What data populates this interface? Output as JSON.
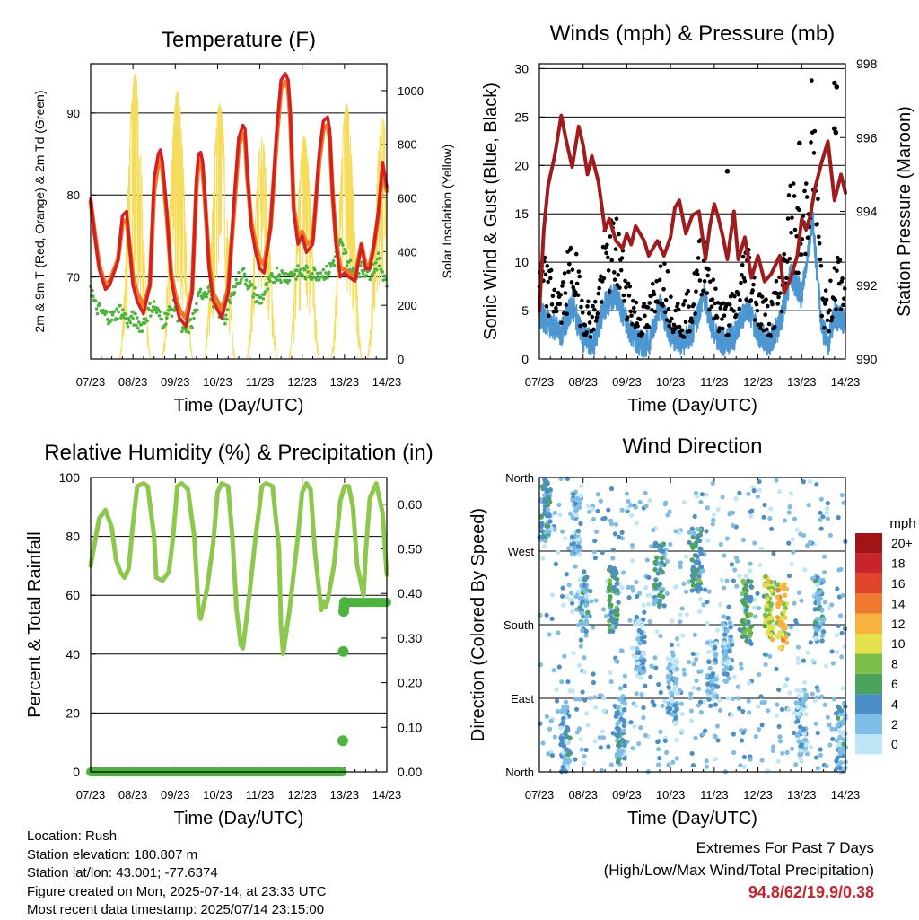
{
  "footer": {
    "location": "Location: Rush",
    "elevation": "Station elevation: 180.807 m",
    "latlon": "Station lat/lon: 43.001; -77.6374",
    "created": "Figure created on Mon, 2025-07-14, at 23:33 UTC",
    "latest": "Most recent data timestamp: 2025/07/14 23:15:00"
  },
  "extremes": {
    "title": "Extremes For Past 7 Days",
    "subtitle": "(High/Low/Max Wind/Total Precipitation)",
    "values": "94.8/62/19.9/0.38"
  },
  "chart_data": [
    {
      "type": "line",
      "title": "Temperature (F)",
      "xlabel": "Time (Day/UTC)",
      "ylabel": "2m & 9m T (Red, Orange) & 2m Td (Green)",
      "y2label": "Solar Insolation (Yellow)",
      "x_ticks": [
        "07/23",
        "08/23",
        "09/23",
        "10/23",
        "11/23",
        "12/23",
        "13/23",
        "14/23"
      ],
      "xlim": [
        0,
        7
      ],
      "ylim": [
        60,
        96
      ],
      "y_ticks": [
        70,
        80,
        90
      ],
      "y2lim": [
        0,
        1100
      ],
      "y2_ticks": [
        0,
        200,
        400,
        600,
        800,
        1000
      ],
      "grid": "horizontal",
      "colors": {
        "t2m": "#d42020",
        "t9m": "#f07a24",
        "td": "#4ab43c",
        "solar": "#f5dc5a"
      },
      "series": [
        {
          "name": "2m T",
          "x": [
            0,
            0.1,
            0.2,
            0.35,
            0.45,
            0.55,
            0.65,
            0.75,
            0.85,
            0.95,
            1.0,
            1.1,
            1.25,
            1.4,
            1.5,
            1.6,
            1.65,
            1.7,
            1.8,
            1.9,
            2.0,
            2.1,
            2.25,
            2.4,
            2.5,
            2.55,
            2.6,
            2.65,
            2.7,
            2.8,
            2.9,
            3.0,
            3.1,
            3.25,
            3.4,
            3.5,
            3.6,
            3.65,
            3.7,
            3.8,
            3.9,
            4.0,
            4.1,
            4.25,
            4.4,
            4.5,
            4.6,
            4.67,
            4.72,
            4.8,
            4.9,
            5.0,
            5.1,
            5.25,
            5.4,
            5.5,
            5.6,
            5.65,
            5.72,
            5.8,
            5.9,
            6.0,
            6.1,
            6.25,
            6.4,
            6.5,
            6.6,
            6.7,
            6.8,
            6.9,
            7.0
          ],
          "values": [
            79.5,
            75,
            71,
            68.5,
            69,
            70.5,
            72,
            77.5,
            78,
            72,
            69,
            67,
            65.5,
            69,
            82,
            85,
            85.5,
            84,
            78,
            70,
            67,
            65,
            64,
            68,
            82,
            85,
            85.2,
            84,
            80,
            71,
            67,
            66,
            65,
            68,
            80,
            87,
            88.5,
            88,
            83,
            76,
            73,
            71,
            70.5,
            76,
            88,
            94,
            94.8,
            94,
            90,
            78,
            74,
            75,
            73,
            74,
            85,
            89,
            89.5,
            88,
            80,
            74,
            70,
            70.5,
            70,
            69.5,
            74,
            71,
            71,
            74,
            78,
            84,
            81
          ]
        },
        {
          "name": "9m T",
          "x": [
            0,
            0.1,
            0.2,
            0.35,
            0.45,
            0.55,
            0.65,
            0.75,
            0.85,
            0.95,
            1.0,
            1.1,
            1.25,
            1.4,
            1.5,
            1.6,
            1.65,
            1.7,
            1.8,
            1.9,
            2.0,
            2.1,
            2.25,
            2.4,
            2.5,
            2.55,
            2.6,
            2.65,
            2.7,
            2.8,
            2.9,
            3.0,
            3.1,
            3.25,
            3.4,
            3.5,
            3.6,
            3.65,
            3.7,
            3.8,
            3.9,
            4.0,
            4.1,
            4.25,
            4.4,
            4.5,
            4.6,
            4.67,
            4.72,
            4.8,
            4.9,
            5.0,
            5.1,
            5.25,
            5.4,
            5.5,
            5.6,
            5.65,
            5.72,
            5.8,
            5.9,
            6.0,
            6.1,
            6.25,
            6.4,
            6.5,
            6.6,
            6.7,
            6.8,
            6.9,
            7.0
          ],
          "values": [
            79.2,
            75.2,
            71.5,
            69,
            69.5,
            70.8,
            72.2,
            76.5,
            77,
            72.5,
            70,
            68,
            66.5,
            69,
            80.5,
            84,
            84.5,
            83,
            77.5,
            70.5,
            67.8,
            66,
            65,
            68.5,
            81,
            84,
            84.2,
            83,
            79.5,
            71.5,
            68,
            67,
            66,
            68.5,
            79,
            86,
            87.5,
            87,
            82.5,
            76.5,
            74,
            72,
            71.5,
            76,
            87,
            93,
            93.8,
            93,
            89.5,
            78.5,
            75,
            75.5,
            74,
            74.5,
            84,
            88,
            88.5,
            87,
            80,
            74.5,
            71,
            71,
            70.5,
            70,
            74,
            71.5,
            71.5,
            74,
            77.5,
            83,
            80.5
          ]
        },
        {
          "name": "2m Td",
          "x": [
            0,
            0.1,
            0.3,
            0.5,
            0.7,
            0.9,
            1.0,
            1.2,
            1.4,
            1.5,
            1.7,
            1.9,
            2.0,
            2.2,
            2.4,
            2.6,
            2.8,
            3.0,
            3.2,
            3.4,
            3.6,
            3.8,
            4.0,
            4.2,
            4.4,
            4.6,
            4.8,
            5.0,
            5.2,
            5.4,
            5.6,
            5.8,
            5.9,
            6.0,
            6.2,
            6.4,
            6.6,
            6.8,
            7.0
          ],
          "values": [
            69,
            66.5,
            65.5,
            65,
            66,
            64.5,
            65,
            64,
            66,
            66.5,
            64.5,
            66,
            66.5,
            63,
            64.5,
            68,
            68.5,
            66,
            65,
            69,
            70.5,
            68.5,
            67,
            69,
            70.5,
            70,
            70.5,
            70.5,
            70.5,
            70.5,
            70.5,
            72.5,
            74,
            73,
            70.5,
            71,
            70.5,
            72,
            69.5
          ]
        },
        {
          "name": "Solar Insolation",
          "axis": "y2",
          "day_peaks": [
            {
              "x": 1.05,
              "value": 1060
            },
            {
              "x": 2.05,
              "value": 1000
            },
            {
              "x": 3.05,
              "value": 950
            },
            {
              "x": 4.05,
              "value": 820
            },
            {
              "x": 5.05,
              "value": 830
            },
            {
              "x": 6.05,
              "value": 950
            },
            {
              "x": 6.9,
              "value": 900
            }
          ]
        }
      ]
    },
    {
      "type": "line",
      "title": "Winds (mph) & Pressure (mb)",
      "xlabel": "Time (Day/UTC)",
      "ylabel": "Sonic Wind & Gust (Blue, Black)",
      "y2label": "Station Pressure (Maroon)",
      "x_ticks": [
        "07/23",
        "08/23",
        "09/23",
        "10/23",
        "11/23",
        "12/23",
        "13/23",
        "14/23"
      ],
      "xlim": [
        0,
        7
      ],
      "ylim": [
        0,
        30.5
      ],
      "y_ticks": [
        0,
        5,
        10,
        15,
        20,
        25,
        30
      ],
      "y2lim": [
        990,
        998
      ],
      "y2_ticks": [
        990,
        992,
        994,
        996,
        998
      ],
      "grid": "horizontal",
      "colors": {
        "wind": "#4c96d2",
        "gust": "#000000",
        "pressure": "#a01c1c"
      },
      "series": [
        {
          "name": "Station Pressure",
          "axis": "y2",
          "x": [
            0,
            0.1,
            0.2,
            0.35,
            0.5,
            0.6,
            0.75,
            0.9,
            1.0,
            1.1,
            1.2,
            1.35,
            1.5,
            1.6,
            1.75,
            1.9,
            2.0,
            2.1,
            2.2,
            2.4,
            2.5,
            2.7,
            2.85,
            3.0,
            3.1,
            3.2,
            3.35,
            3.5,
            3.65,
            3.8,
            3.9,
            4.0,
            4.1,
            4.2,
            4.3,
            4.45,
            4.55,
            4.7,
            4.85,
            5.0,
            5.15,
            5.3,
            5.5,
            5.6,
            5.75,
            5.9,
            6.0,
            6.1,
            6.2,
            6.3,
            6.45,
            6.6,
            6.75,
            6.9,
            7.0
          ],
          "values": [
            991.3,
            993.5,
            994.7,
            995.5,
            996.6,
            996.0,
            995.2,
            996.3,
            995.8,
            995.0,
            995.5,
            994.8,
            993.5,
            993.8,
            993.2,
            993.0,
            993.4,
            993.1,
            993.6,
            993.2,
            992.8,
            993.2,
            992.8,
            993.3,
            994.1,
            994.3,
            993.4,
            993.9,
            994.0,
            992.7,
            993.6,
            994.2,
            993.8,
            993.3,
            992.7,
            994.0,
            992.7,
            993.3,
            992.2,
            992.8,
            992.1,
            992.3,
            992.8,
            991.8,
            992.2,
            992.8,
            993.8,
            993.5,
            993.9,
            994.6,
            995.3,
            995.9,
            994.3,
            995.0,
            994.5
          ]
        },
        {
          "name": "Sonic Wind",
          "x": [
            0,
            0.25,
            0.5,
            0.75,
            1.0,
            1.25,
            1.5,
            1.75,
            2.0,
            2.25,
            2.5,
            2.75,
            3.0,
            3.25,
            3.5,
            3.75,
            4.0,
            4.25,
            4.5,
            4.75,
            5.0,
            5.25,
            5.5,
            5.75,
            6.0,
            6.25,
            6.45,
            6.6,
            6.75,
            7.0
          ],
          "values": [
            4,
            3,
            2,
            5,
            1.5,
            1,
            5,
            6,
            3,
            1,
            1,
            5,
            2,
            1,
            2,
            6,
            2,
            1,
            2,
            5,
            2,
            1,
            3,
            8,
            6,
            14,
            3,
            1,
            4,
            3
          ]
        },
        {
          "name": "Gust",
          "notable": [
            {
              "x": 5.95,
              "value": 22.3
            },
            {
              "x": 6.75,
              "value": 28.5
            },
            {
              "x": 6.8,
              "value": 28.1
            },
            {
              "x": 6.75,
              "value": 23.8
            },
            {
              "x": 6.78,
              "value": 23.4
            },
            {
              "x": 4.3,
              "value": 19.4
            }
          ]
        }
      ]
    },
    {
      "type": "line",
      "title": "Relative Humidity (%) & Precipitation (in)",
      "xlabel": "Time (Day/UTC)",
      "ylabel": "Percent & Total Rainfall",
      "x_ticks": [
        "07/23",
        "08/23",
        "09/23",
        "10/23",
        "11/23",
        "12/23",
        "13/23",
        "14/23"
      ],
      "xlim": [
        0,
        7
      ],
      "ylim": [
        0,
        100
      ],
      "y_ticks": [
        0,
        20,
        40,
        60,
        80,
        100
      ],
      "y2lim": [
        0,
        0.66
      ],
      "y2_ticks": [
        "0.00",
        "0.10",
        "0.20",
        "0.30",
        "0.40",
        "0.50",
        "0.60"
      ],
      "grid": "horizontal",
      "colors": {
        "rh": "#8cc84c",
        "precip": "#4ab43c"
      },
      "series": [
        {
          "name": "Relative Humidity",
          "x": [
            0,
            0.2,
            0.35,
            0.5,
            0.6,
            0.7,
            0.8,
            0.9,
            1.0,
            1.1,
            1.25,
            1.35,
            1.5,
            1.55,
            1.7,
            1.85,
            1.95,
            2.05,
            2.15,
            2.3,
            2.45,
            2.55,
            2.6,
            2.75,
            2.9,
            3.0,
            3.1,
            3.25,
            3.35,
            3.45,
            3.55,
            3.6,
            3.75,
            3.9,
            4.05,
            4.15,
            4.3,
            4.45,
            4.5,
            4.55,
            4.7,
            4.9,
            5.0,
            5.1,
            5.2,
            5.3,
            5.45,
            5.5,
            5.55,
            5.6,
            5.75,
            5.9,
            6.0,
            6.1,
            6.2,
            6.3,
            6.45,
            6.5,
            6.6,
            6.75,
            6.9,
            7.0
          ],
          "values": [
            70,
            86,
            89,
            83,
            72,
            68,
            66,
            69,
            84,
            97,
            98,
            97,
            80,
            66,
            65,
            68,
            80,
            97,
            98,
            96,
            80,
            55,
            52,
            62,
            78,
            95,
            98,
            97,
            80,
            55,
            43,
            42,
            60,
            80,
            97,
            98,
            97,
            76,
            50,
            40,
            55,
            80,
            95,
            98,
            96,
            75,
            55,
            58,
            56,
            58,
            70,
            92,
            97,
            97,
            90,
            70,
            60,
            74,
            93,
            98,
            88,
            67
          ]
        },
        {
          "name": "Total Precipitation",
          "axis": "y2",
          "x": [
            0,
            5.95,
            5.96,
            5.97,
            5.98,
            5.99,
            6.0,
            7.0
          ],
          "values": [
            0,
            0,
            0.07,
            0.27,
            0.36,
            0.37,
            0.38,
            0.38
          ]
        }
      ]
    },
    {
      "type": "scatter",
      "title": "Wind Direction",
      "xlabel": "Time (Day/UTC)",
      "ylabel": "Direction (Colored By Speed)",
      "x_ticks": [
        "07/23",
        "08/23",
        "09/23",
        "10/23",
        "11/23",
        "12/23",
        "13/23",
        "14/23"
      ],
      "xlim": [
        0,
        7
      ],
      "y_ticks": [
        "North",
        "East",
        "South",
        "West",
        "North"
      ],
      "ylim": [
        0,
        360
      ],
      "grid": "horizontal",
      "colorbar": {
        "title": "mph",
        "labels": [
          "0",
          "2",
          "4",
          "6",
          "8",
          "10",
          "12",
          "14",
          "16",
          "18",
          "20+"
        ],
        "colors": [
          "#bfe6f7",
          "#7dbde6",
          "#4c8fc8",
          "#4ca35c",
          "#7cc04a",
          "#e6e04c",
          "#f7b240",
          "#ef7a30",
          "#e0452a",
          "#c8242b",
          "#a01418"
        ]
      },
      "clusters": [
        {
          "x": 0.15,
          "dir": 320,
          "spd": 4
        },
        {
          "x": 0.6,
          "dir": 40,
          "spd": 3
        },
        {
          "x": 0.85,
          "dir": 300,
          "spd": 2
        },
        {
          "x": 1.0,
          "dir": 200,
          "spd": 3
        },
        {
          "x": 1.7,
          "dir": 210,
          "spd": 5
        },
        {
          "x": 1.85,
          "dir": 50,
          "spd": 3
        },
        {
          "x": 2.3,
          "dir": 150,
          "spd": 2
        },
        {
          "x": 2.75,
          "dir": 240,
          "spd": 4
        },
        {
          "x": 3.05,
          "dir": 100,
          "spd": 2
        },
        {
          "x": 3.6,
          "dir": 260,
          "spd": 5
        },
        {
          "x": 3.95,
          "dir": 120,
          "spd": 2
        },
        {
          "x": 4.3,
          "dir": 150,
          "spd": 2
        },
        {
          "x": 4.75,
          "dir": 195,
          "spd": 6
        },
        {
          "x": 5.25,
          "dir": 200,
          "spd": 9
        },
        {
          "x": 5.55,
          "dir": 190,
          "spd": 11
        },
        {
          "x": 6.0,
          "dir": 60,
          "spd": 2
        },
        {
          "x": 6.4,
          "dir": 200,
          "spd": 3
        },
        {
          "x": 6.9,
          "dir": 40,
          "spd": 3
        }
      ]
    }
  ]
}
